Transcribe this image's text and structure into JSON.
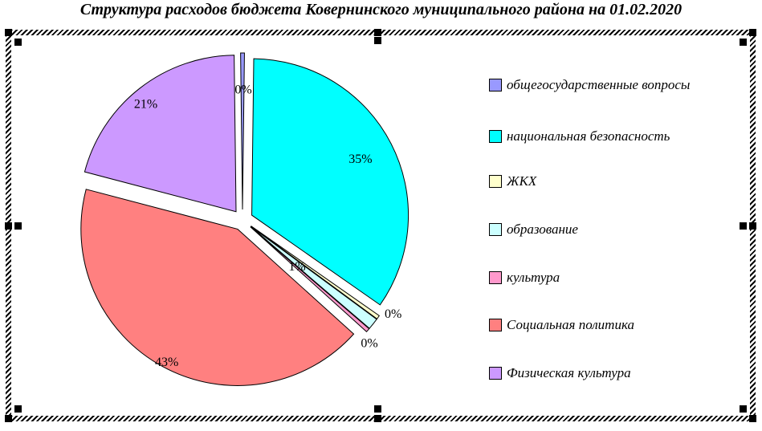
{
  "document": {
    "title": "Структура расходов бюджета Ковернинского муниципального района на 01.02.2020"
  },
  "chart_data": {
    "type": "pie",
    "title": "Структура расходов бюджета Ковернинского муниципального района на 01.02.2020",
    "legend_position": "right",
    "data_labels": "percent",
    "exploded": true,
    "slices": [
      {
        "label": "общегосударственные вопросы",
        "percent_label": "0%",
        "value": 0.4,
        "color": "#9999FF"
      },
      {
        "label": "национальная безопасность",
        "percent_label": "35%",
        "value": 35,
        "color": "#00FFFF"
      },
      {
        "label": "ЖКХ",
        "percent_label": "0%",
        "value": 0.4,
        "color": "#FFFFCC"
      },
      {
        "label": "образование",
        "percent_label": "1%",
        "value": 1.2,
        "color": "#CCFFFF"
      },
      {
        "label": "культура",
        "percent_label": "0%",
        "value": 0.4,
        "color": "#FF99CC"
      },
      {
        "label": "Социальная политика",
        "percent_label": "43%",
        "value": 43,
        "color": "#FF8080"
      },
      {
        "label": "Физическая культура",
        "percent_label": "21%",
        "value": 21,
        "color": "#CC99FF"
      }
    ]
  }
}
